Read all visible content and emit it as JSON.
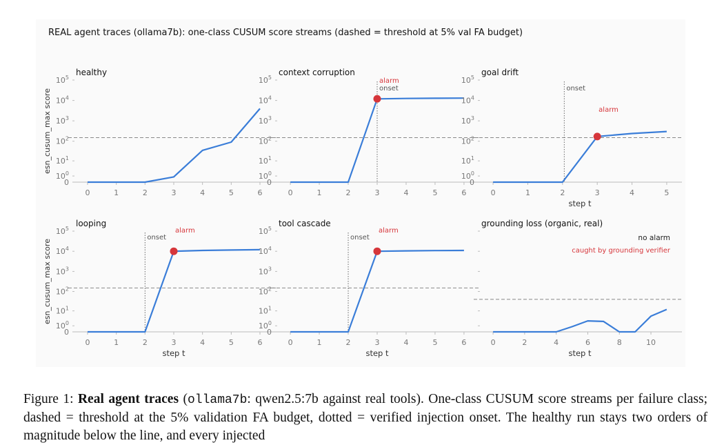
{
  "figure": {
    "suptitle": "REAL agent traces (ollama7b): one-class CUSUM score streams (dashed = threshold at 5% val FA budget)",
    "ylabel": "esn_cusum_max score",
    "xlabel": "step t"
  },
  "chart_data": [
    {
      "type": "line",
      "title": "healthy",
      "scale": "symlog",
      "x": [
        0,
        1,
        2,
        3,
        4,
        5,
        6
      ],
      "y": [
        0,
        0,
        0,
        0.8,
        35,
        90,
        4000
      ],
      "xticks": [
        0,
        1,
        2,
        3,
        4,
        5,
        6
      ],
      "yticks": [
        "0",
        "10^0",
        "10^1",
        "10^2",
        "10^3",
        "10^4",
        "10^5"
      ],
      "threshold": 150,
      "onset": null,
      "alarm": null,
      "annotations": [],
      "xlabel": "",
      "ylabel": "esn_cusum_max score"
    },
    {
      "type": "line",
      "title": "context corruption",
      "scale": "symlog",
      "x": [
        0,
        1,
        2,
        3,
        4,
        5,
        6
      ],
      "y": [
        0,
        0,
        0,
        12000,
        12500,
        12800,
        13000
      ],
      "xticks": [
        0,
        1,
        2,
        3,
        4,
        5,
        6
      ],
      "yticks": [
        "0",
        "10^0",
        "10^1",
        "10^2",
        "10^3",
        "10^4",
        "10^5"
      ],
      "threshold": 150,
      "onset": 3,
      "alarm": {
        "x": 3,
        "y": 12000
      },
      "annotations": [
        "alarm",
        "onset"
      ],
      "xlabel": "",
      "ylabel": ""
    },
    {
      "type": "line",
      "title": "goal drift",
      "scale": "symlog",
      "x": [
        0,
        1,
        2,
        3,
        4,
        5
      ],
      "y": [
        0,
        0,
        0,
        170,
        240,
        300
      ],
      "xticks": [
        0,
        1,
        2,
        3,
        4,
        5
      ],
      "yticks": [
        "0",
        "10^0",
        "10^1",
        "10^2",
        "10^3",
        "10^4",
        "10^5"
      ],
      "threshold": 150,
      "onset": 2.05,
      "alarm": {
        "x": 3,
        "y": 170
      },
      "annotations": [
        "onset",
        "alarm"
      ],
      "xlabel": "step t",
      "ylabel": ""
    },
    {
      "type": "line",
      "title": "looping",
      "scale": "symlog",
      "x": [
        0,
        1,
        2,
        3,
        4,
        5,
        6
      ],
      "y": [
        0,
        0,
        0,
        10000,
        11000,
        11500,
        12000
      ],
      "xticks": [
        0,
        1,
        2,
        3,
        4,
        5,
        6
      ],
      "yticks": [
        "0",
        "10^0",
        "10^1",
        "10^2",
        "10^3",
        "10^4",
        "10^5"
      ],
      "threshold": 150,
      "onset": 2,
      "alarm": {
        "x": 3,
        "y": 10000
      },
      "annotations": [
        "onset",
        "alarm"
      ],
      "xlabel": "step t",
      "ylabel": "esn_cusum_max score"
    },
    {
      "type": "line",
      "title": "tool cascade",
      "scale": "symlog",
      "x": [
        0,
        1,
        2,
        3,
        4,
        5,
        6
      ],
      "y": [
        0,
        0,
        0,
        10000,
        10500,
        10800,
        11000
      ],
      "xticks": [
        0,
        1,
        2,
        3,
        4,
        5,
        6
      ],
      "yticks": [
        "0",
        "10^0",
        "10^1",
        "10^2",
        "10^3",
        "10^4",
        "10^5"
      ],
      "threshold": 150,
      "onset": 2,
      "alarm": {
        "x": 3,
        "y": 10000
      },
      "annotations": [
        "onset",
        "alarm"
      ],
      "xlabel": "step t",
      "ylabel": ""
    },
    {
      "type": "line",
      "title": "grounding loss (organic, real)",
      "scale": "symlog",
      "x": [
        0,
        1,
        2,
        3,
        4,
        5,
        6,
        7,
        8,
        9,
        10,
        11
      ],
      "y": [
        0,
        0,
        0,
        0,
        0,
        0.8,
        2.5,
        2.3,
        0,
        0,
        5,
        12
      ],
      "xticks": [
        0,
        2,
        4,
        6,
        8,
        10
      ],
      "yticks": [],
      "threshold": 40,
      "onset": null,
      "alarm": null,
      "annotations": [
        "no alarm",
        "caught by grounding verifier"
      ],
      "xlabel": "step t",
      "ylabel": ""
    }
  ],
  "caption": {
    "prefix": "Figure 1: ",
    "bold": "Real agent traces",
    "open_paren": " (",
    "mono": "ollama7b",
    "rest": ": qwen2.5:7b against real tools). One-class CUSUM score streams per failure class; dashed = threshold at the 5% validation FA budget, dotted = verified injection onset. The healthy run stays two orders of magnitude below the line, and every injected"
  },
  "colors": {
    "line": "#3a7dd8",
    "alarm": "#d6363b",
    "threshold": "#888888",
    "onset": "#666666",
    "axis": "#bbbbbb",
    "tick_text": "#777777",
    "panel_bg": "#fafafa"
  }
}
